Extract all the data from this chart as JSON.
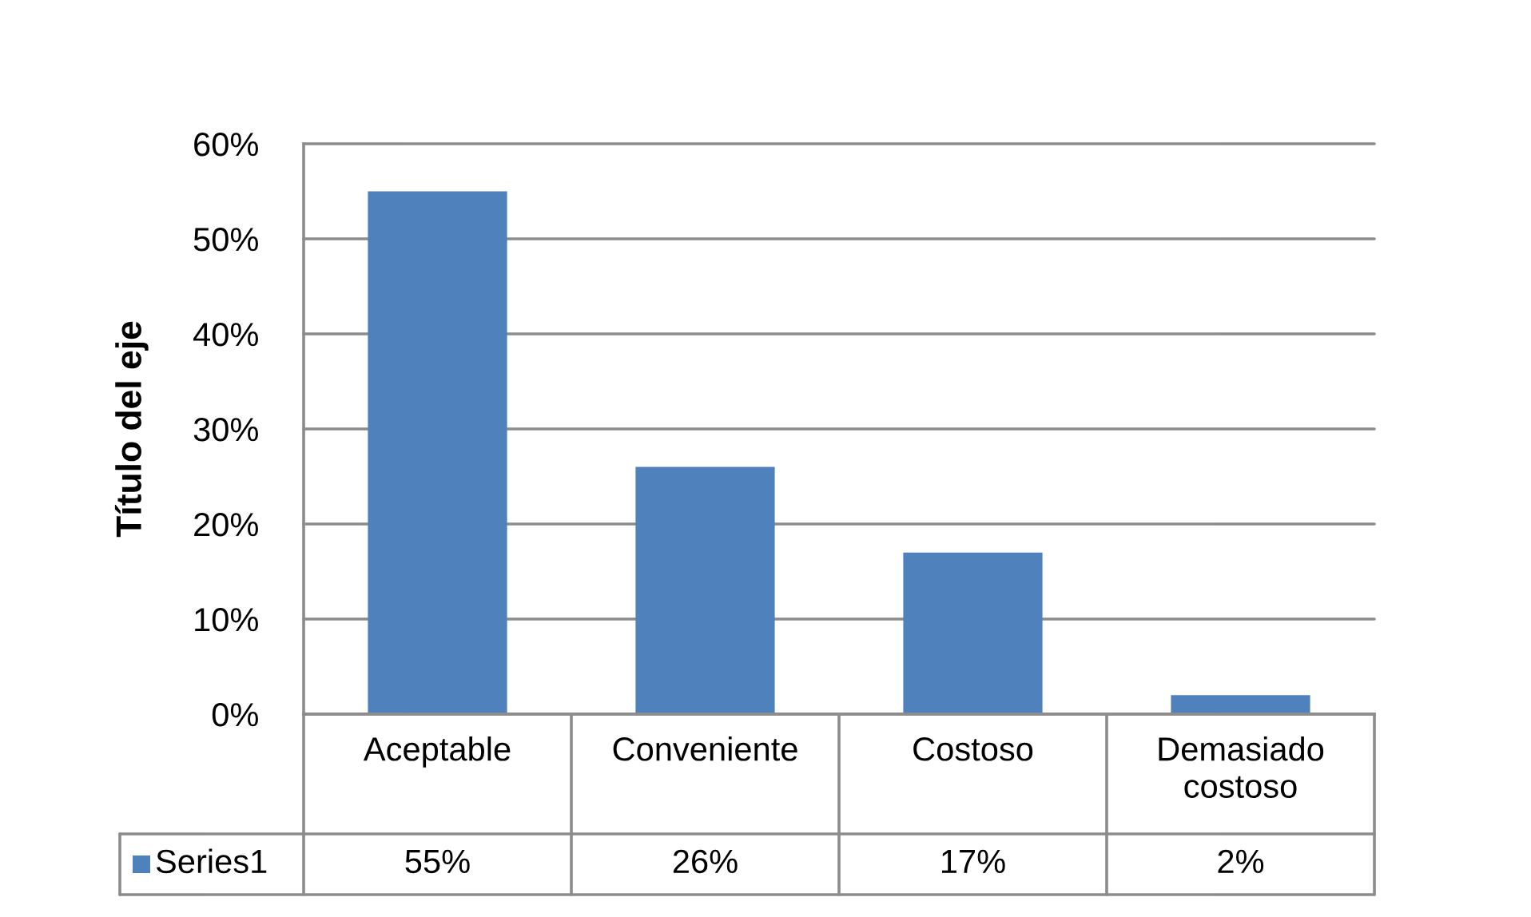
{
  "chart_data": {
    "type": "bar",
    "ylabel": "Título del eje",
    "categories": [
      "Aceptable",
      "Conveniente",
      "Costoso",
      "Demasiado costoso"
    ],
    "series": [
      {
        "name": "Series1",
        "color": "#4f81bd",
        "values": [
          55,
          26,
          17,
          2
        ],
        "value_labels": [
          "55%",
          "26%",
          "17%",
          "2%"
        ]
      }
    ],
    "ylim": [
      0,
      60
    ],
    "yticks": [
      {
        "value": 0,
        "label": "0%"
      },
      {
        "value": 10,
        "label": "10%"
      },
      {
        "value": 20,
        "label": "20%"
      },
      {
        "value": 30,
        "label": "30%"
      },
      {
        "value": 40,
        "label": "40%"
      },
      {
        "value": 50,
        "label": "50%"
      },
      {
        "value": 60,
        "label": "60%"
      }
    ],
    "grid": "y",
    "legend": "bottom"
  }
}
